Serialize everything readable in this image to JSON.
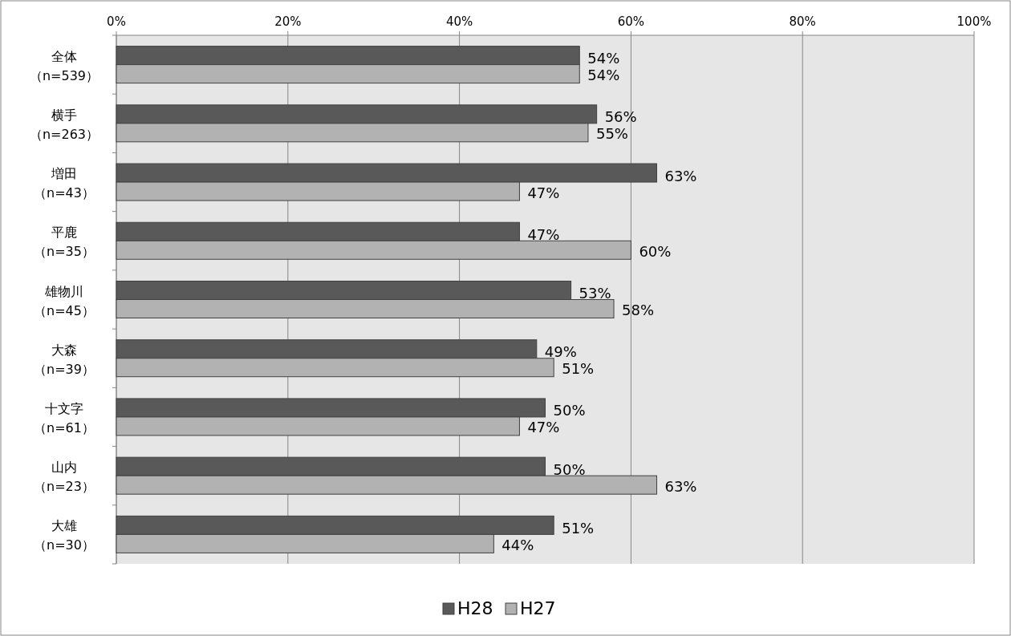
{
  "chart_data": {
    "type": "bar",
    "orientation": "horizontal",
    "categories": [
      "全体（n=539）",
      "横手（n=263）",
      "増田（n=43）",
      "平鹿（n=35）",
      "雄物川（n=45）",
      "大森（n=39）",
      "十文字（n=61）",
      "山内（n=23）",
      "大雄（n=30）"
    ],
    "series": [
      {
        "name": "H28",
        "color": "#595959",
        "values": [
          54,
          56,
          63,
          47,
          53,
          49,
          50,
          50,
          51
        ],
        "value_labels": [
          "54%",
          "56%",
          "63%",
          "47%",
          "53%",
          "49%",
          "50%",
          "50%",
          "51%"
        ]
      },
      {
        "name": "H27",
        "color": "#b2b2b2",
        "values": [
          54,
          55,
          47,
          60,
          58,
          51,
          47,
          63,
          44
        ],
        "value_labels": [
          "54%",
          "55%",
          "47%",
          "60%",
          "58%",
          "51%",
          "47%",
          "63%",
          "44%"
        ]
      }
    ],
    "xlim": [
      0,
      100
    ],
    "xticks": [
      {
        "value": 0,
        "label": "0%"
      },
      {
        "value": 20,
        "label": "20%"
      },
      {
        "value": 40,
        "label": "40%"
      },
      {
        "value": 60,
        "label": "60%"
      },
      {
        "value": 80,
        "label": "80%"
      },
      {
        "value": 100,
        "label": "100%"
      }
    ],
    "grid": "x",
    "legend": "bottom"
  }
}
